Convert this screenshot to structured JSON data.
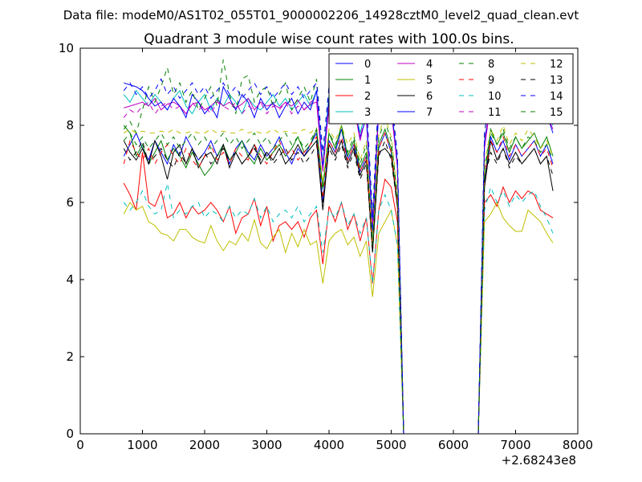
{
  "figure": {
    "suptitle": "Data file: modeM0/AS1T02_055T01_9000002206_14928cztM0_level2_quad_clean.evt"
  },
  "chart_data": {
    "type": "line",
    "title": "Quadrant 3 module wise count rates with 100.0s bins.",
    "xlabel": "",
    "ylabel": "",
    "xlim": [
      0,
      8000
    ],
    "ylim": [
      0,
      10
    ],
    "x_offset_label": "+2.68243e8",
    "x_ticks": [
      0,
      1000,
      2000,
      3000,
      4000,
      5000,
      6000,
      7000,
      8000
    ],
    "y_ticks": [
      0,
      2,
      4,
      6,
      8,
      10
    ],
    "grid": false,
    "legend_position": "top-right",
    "legend_columns": 4,
    "x": [
      700,
      800,
      900,
      1000,
      1100,
      1200,
      1300,
      1400,
      1500,
      1600,
      1700,
      1800,
      1900,
      2000,
      2100,
      2200,
      2300,
      2400,
      2500,
      2600,
      2700,
      2800,
      2900,
      3000,
      3100,
      3200,
      3300,
      3400,
      3500,
      3600,
      3700,
      3800,
      3900,
      4000,
      4100,
      4200,
      4300,
      4400,
      4500,
      4600,
      4700,
      4800,
      4900,
      5000,
      5100,
      5200,
      5300,
      5400,
      5500,
      5600,
      5700,
      5800,
      5900,
      6000,
      6100,
      6200,
      6300,
      6400,
      6500,
      6600,
      6700,
      6800,
      6900,
      7000,
      7100,
      7200,
      7300,
      7400,
      7500,
      7600
    ],
    "series": [
      {
        "name": "0",
        "color": "#0000ff",
        "dash": "solid",
        "values": [
          7.2,
          7.5,
          7.8,
          7.4,
          7.1,
          7.6,
          7.3,
          7.0,
          7.5,
          7.2,
          7.7,
          7.4,
          7.1,
          7.3,
          7.6,
          7.2,
          7.5,
          7.0,
          7.4,
          7.6,
          7.3,
          7.1,
          7.5,
          7.2,
          7.4,
          7.7,
          7.3,
          7.0,
          7.4,
          7.2,
          7.5,
          7.8,
          6.0,
          7.6,
          7.3,
          7.9,
          7.1,
          7.5,
          6.8,
          7.2,
          4.9,
          7.4,
          7.8,
          7.3,
          6.0,
          0,
          0,
          0,
          0,
          0,
          0,
          0,
          0,
          0,
          0,
          0,
          0,
          0,
          6.5,
          7.7,
          7.3,
          7.6,
          7.1,
          7.5,
          7.2,
          7.4,
          7.6,
          7.2,
          7.5,
          7.0
        ]
      },
      {
        "name": "1",
        "color": "#008000",
        "dash": "solid",
        "values": [
          8.0,
          7.8,
          7.2,
          7.5,
          7.0,
          7.3,
          7.6,
          7.1,
          7.4,
          7.2,
          6.9,
          7.3,
          7.0,
          6.7,
          6.9,
          7.2,
          7.5,
          7.1,
          7.3,
          7.6,
          7.2,
          7.0,
          7.4,
          7.1,
          7.3,
          7.5,
          7.2,
          7.4,
          7.7,
          7.3,
          7.5,
          7.9,
          6.4,
          7.8,
          7.4,
          8.0,
          7.2,
          7.6,
          6.9,
          7.3,
          4.8,
          7.5,
          7.9,
          7.4,
          6.0,
          0,
          0,
          0,
          0,
          0,
          0,
          0,
          0,
          0,
          0,
          0,
          0,
          0,
          6.6,
          7.9,
          7.5,
          7.8,
          7.3,
          7.7,
          7.4,
          7.6,
          7.8,
          7.4,
          7.7,
          7.2
        ]
      },
      {
        "name": "2",
        "color": "#ff0000",
        "dash": "solid",
        "values": [
          6.5,
          6.2,
          5.8,
          7.3,
          6.0,
          5.9,
          6.3,
          5.6,
          5.7,
          6.0,
          5.6,
          5.9,
          5.7,
          5.8,
          6.0,
          5.8,
          5.5,
          5.9,
          5.2,
          5.6,
          5.7,
          6.1,
          5.4,
          5.9,
          5.0,
          5.4,
          5.5,
          5.3,
          5.5,
          5.1,
          5.6,
          5.8,
          4.4,
          5.9,
          5.5,
          6.0,
          5.3,
          5.7,
          5.0,
          5.6,
          3.9,
          5.8,
          6.6,
          6.4,
          5.5,
          0,
          0,
          0,
          0,
          0,
          0,
          0,
          0,
          0,
          0,
          0,
          0,
          0,
          6.0,
          6.2,
          5.9,
          6.4,
          6.0,
          6.3,
          6.1,
          6.3,
          6.2,
          5.8,
          5.7,
          5.6
        ]
      },
      {
        "name": "3",
        "color": "#00bfbf",
        "dash": "solid",
        "values": [
          8.8,
          8.6,
          8.9,
          8.7,
          8.5,
          8.8,
          8.6,
          8.4,
          8.7,
          8.9,
          8.5,
          8.3,
          8.6,
          8.8,
          8.4,
          8.7,
          8.5,
          8.8,
          8.6,
          8.3,
          8.7,
          8.5,
          8.4,
          8.6,
          8.8,
          8.5,
          8.7,
          8.4,
          8.6,
          8.8,
          8.5,
          8.9,
          7.0,
          8.8,
          8.4,
          8.9,
          8.3,
          8.6,
          7.8,
          8.4,
          5.5,
          8.6,
          9.0,
          8.5,
          7.0,
          0,
          0,
          0,
          0,
          0,
          0,
          0,
          0,
          0,
          0,
          0,
          0,
          0,
          7.5,
          8.7,
          8.4,
          8.8,
          8.3,
          8.6,
          8.4,
          8.7,
          8.5,
          8.2,
          8.4,
          8.0
        ]
      },
      {
        "name": "4",
        "color": "#bf00bf",
        "dash": "solid",
        "values": [
          8.45,
          8.5,
          8.55,
          8.6,
          8.5,
          8.7,
          8.4,
          8.55,
          8.6,
          8.5,
          8.3,
          8.55,
          8.6,
          8.4,
          8.5,
          8.65,
          8.5,
          8.6,
          8.45,
          8.55,
          8.7,
          8.4,
          8.6,
          8.5,
          8.55,
          8.45,
          8.6,
          8.5,
          8.65,
          8.4,
          8.55,
          8.6,
          6.8,
          8.5,
          8.3,
          8.7,
          8.2,
          8.5,
          7.6,
          8.3,
          5.3,
          8.5,
          8.9,
          8.4,
          6.9,
          0,
          0,
          0,
          0,
          0,
          0,
          0,
          0,
          0,
          0,
          0,
          0,
          0,
          7.4,
          8.6,
          8.3,
          8.7,
          8.2,
          8.5,
          8.3,
          8.6,
          8.4,
          8.1,
          8.3,
          7.9
        ]
      },
      {
        "name": "5",
        "color": "#bfbf00",
        "dash": "solid",
        "values": [
          5.7,
          6.0,
          5.8,
          5.9,
          5.5,
          5.4,
          5.2,
          5.15,
          5.0,
          5.3,
          5.3,
          5.1,
          5.0,
          4.95,
          5.4,
          5.0,
          4.75,
          5.0,
          4.9,
          5.2,
          5.0,
          5.55,
          4.95,
          4.8,
          5.1,
          5.3,
          4.7,
          5.2,
          4.85,
          5.3,
          4.9,
          5.0,
          3.9,
          5.0,
          5.2,
          5.3,
          4.9,
          5.1,
          4.6,
          5.0,
          3.55,
          5.2,
          5.5,
          5.8,
          4.9,
          0,
          0,
          0,
          0,
          0,
          0,
          0,
          0,
          0,
          0,
          0,
          0,
          0,
          5.5,
          5.7,
          6.0,
          5.6,
          5.4,
          5.25,
          5.25,
          5.8,
          5.65,
          5.5,
          5.2,
          4.95
        ]
      },
      {
        "name": "6",
        "color": "#000000",
        "dash": "solid",
        "values": [
          7.6,
          7.3,
          7.1,
          7.4,
          7.0,
          7.6,
          7.2,
          6.6,
          7.3,
          7.5,
          7.0,
          7.4,
          6.9,
          7.2,
          7.3,
          7.0,
          7.5,
          6.9,
          7.3,
          7.0,
          7.2,
          7.5,
          7.0,
          7.3,
          7.1,
          7.4,
          7.0,
          7.2,
          7.5,
          7.2,
          7.4,
          7.6,
          5.8,
          7.5,
          7.2,
          7.6,
          7.0,
          7.4,
          6.7,
          7.1,
          4.7,
          7.3,
          7.4,
          7.2,
          5.9,
          0,
          0,
          0,
          0,
          0,
          0,
          0,
          0,
          0,
          0,
          0,
          0,
          0,
          6.4,
          7.6,
          7.1,
          7.4,
          7.0,
          7.3,
          7.0,
          7.2,
          7.4,
          7.0,
          7.2,
          6.3
        ]
      },
      {
        "name": "7",
        "color": "#0000ff",
        "dash": "solid",
        "values": [
          9.1,
          9.05,
          9.0,
          8.9,
          8.7,
          8.5,
          8.6,
          8.4,
          8.7,
          8.5,
          8.2,
          8.8,
          8.6,
          8.3,
          8.5,
          8.2,
          9.0,
          8.7,
          8.4,
          8.8,
          8.6,
          8.2,
          8.7,
          8.4,
          8.6,
          8.2,
          8.5,
          8.7,
          8.3,
          8.6,
          8.4,
          8.9,
          6.9,
          8.7,
          8.3,
          8.9,
          8.1,
          8.5,
          7.7,
          8.2,
          5.2,
          8.4,
          8.9,
          8.5,
          7.0,
          0,
          0,
          0,
          0,
          0,
          0,
          0,
          0,
          0,
          0,
          0,
          0,
          0,
          7.6,
          8.6,
          8.3,
          8.8,
          8.3,
          8.6,
          8.3,
          8.6,
          8.4,
          8.1,
          8.3,
          7.8
        ]
      },
      {
        "name": "8",
        "color": "#008000",
        "dash": "dashed",
        "values": [
          7.9,
          8.1,
          7.8,
          8.4,
          9.0,
          8.6,
          9.0,
          9.5,
          8.8,
          9.1,
          8.6,
          8.9,
          8.4,
          8.7,
          9.0,
          8.5,
          9.7,
          8.8,
          8.3,
          9.2,
          9.3,
          8.6,
          8.9,
          9.0,
          8.5,
          8.8,
          9.1,
          8.4,
          8.7,
          9.0,
          8.6,
          9.2,
          7.3,
          9.0,
          8.6,
          9.2,
          8.4,
          8.8,
          8.1,
          8.6,
          5.7,
          8.8,
          9.2,
          8.7,
          7.2,
          0,
          0,
          0,
          0,
          0,
          0,
          0,
          0,
          0,
          0,
          0,
          0,
          0,
          7.8,
          9.0,
          8.6,
          9.1,
          8.6,
          8.9,
          8.6,
          9.0,
          8.8,
          8.4,
          8.6,
          8.2
        ]
      },
      {
        "name": "9",
        "color": "#ff0000",
        "dash": "dashed",
        "values": [
          7.0,
          7.6,
          7.3,
          7.1,
          7.4,
          7.0,
          7.3,
          7.5,
          7.2,
          7.0,
          7.4,
          7.1,
          6.9,
          7.2,
          7.5,
          7.1,
          7.3,
          7.0,
          7.4,
          7.2,
          7.1,
          7.5,
          7.2,
          7.0,
          7.3,
          7.6,
          7.2,
          7.4,
          7.1,
          7.3,
          7.5,
          7.7,
          6.1,
          7.6,
          7.3,
          7.7,
          7.1,
          7.5,
          6.8,
          7.2,
          4.8,
          7.4,
          7.8,
          7.3,
          6.0,
          0,
          0,
          0,
          0,
          0,
          0,
          0,
          0,
          0,
          0,
          0,
          0,
          0,
          6.7,
          7.6,
          7.3,
          7.7,
          7.2,
          7.5,
          7.2,
          7.4,
          7.6,
          7.2,
          7.4,
          6.9
        ]
      },
      {
        "name": "10",
        "color": "#00bfbf",
        "dash": "dashed",
        "values": [
          6.0,
          5.8,
          6.0,
          6.3,
          5.9,
          5.7,
          5.8,
          6.5,
          5.6,
          5.8,
          5.7,
          5.9,
          6.0,
          5.6,
          5.8,
          5.7,
          5.5,
          5.9,
          5.6,
          5.8,
          5.7,
          6.1,
          5.6,
          5.9,
          5.5,
          5.7,
          5.8,
          5.6,
          5.9,
          5.5,
          5.7,
          5.9,
          4.7,
          5.8,
          5.6,
          6.0,
          5.4,
          5.7,
          5.2,
          5.6,
          3.9,
          5.8,
          6.2,
          5.8,
          4.9,
          0,
          0,
          0,
          0,
          0,
          0,
          0,
          0,
          0,
          0,
          0,
          0,
          0,
          5.8,
          6.4,
          6.0,
          6.3,
          5.9,
          6.2,
          6.0,
          6.2,
          6.3,
          5.9,
          5.6,
          5.2
        ]
      },
      {
        "name": "11",
        "color": "#bf00bf",
        "dash": "dashed",
        "values": [
          8.2,
          8.4,
          8.3,
          8.5,
          8.6,
          8.3,
          8.5,
          8.6,
          8.4,
          8.5,
          8.3,
          8.6,
          8.4,
          8.5,
          8.3,
          8.6,
          8.5,
          8.4,
          8.6,
          8.3,
          8.5,
          8.4,
          8.6,
          8.3,
          8.5,
          8.4,
          8.6,
          8.3,
          8.5,
          8.4,
          8.6,
          8.7,
          6.9,
          8.6,
          8.3,
          8.8,
          8.2,
          8.5,
          7.7,
          8.3,
          5.4,
          8.5,
          8.9,
          8.4,
          7.0,
          0,
          0,
          0,
          0,
          0,
          0,
          0,
          0,
          0,
          0,
          0,
          0,
          0,
          7.5,
          8.7,
          8.4,
          8.8,
          8.3,
          8.6,
          8.3,
          8.7,
          8.5,
          8.2,
          8.4,
          8.0
        ]
      },
      {
        "name": "12",
        "color": "#bfbf00",
        "dash": "dashed",
        "values": [
          7.8,
          7.9,
          7.8,
          7.85,
          7.8,
          7.8,
          7.85,
          7.8,
          7.9,
          7.8,
          7.8,
          7.85,
          7.8,
          7.8,
          7.9,
          7.8,
          7.85,
          7.8,
          7.8,
          7.9,
          7.8,
          7.85,
          7.8,
          7.8,
          7.9,
          7.8,
          7.85,
          7.8,
          7.8,
          7.9,
          7.8,
          7.95,
          6.5,
          7.9,
          7.6,
          8.0,
          7.5,
          7.8,
          7.1,
          7.6,
          5.0,
          7.8,
          8.2,
          7.7,
          6.4,
          0,
          0,
          0,
          0,
          0,
          0,
          0,
          0,
          0,
          0,
          0,
          0,
          0,
          7.0,
          7.9,
          7.6,
          8.0,
          7.5,
          7.8,
          7.6,
          7.9,
          7.7,
          7.4,
          7.6,
          7.2
        ]
      },
      {
        "name": "13",
        "color": "#000000",
        "dash": "dashed",
        "values": [
          7.4,
          7.1,
          7.3,
          7.6,
          7.0,
          7.2,
          7.4,
          7.1,
          6.9,
          7.3,
          7.0,
          7.4,
          7.1,
          7.3,
          7.0,
          7.2,
          7.4,
          7.1,
          7.3,
          7.0,
          7.2,
          7.4,
          7.1,
          7.3,
          7.0,
          7.2,
          7.4,
          7.1,
          7.3,
          7.0,
          7.2,
          7.5,
          6.0,
          7.4,
          7.1,
          7.5,
          6.9,
          7.3,
          6.6,
          7.0,
          4.7,
          7.2,
          7.6,
          7.1,
          5.9,
          0,
          0,
          0,
          0,
          0,
          0,
          0,
          0,
          0,
          0,
          0,
          0,
          0,
          6.6,
          7.3,
          7.0,
          7.4,
          6.9,
          7.2,
          7.0,
          7.2,
          7.4,
          7.0,
          7.2,
          6.7
        ]
      },
      {
        "name": "14",
        "color": "#0000ff",
        "dash": "dashed",
        "values": [
          8.9,
          9.1,
          8.8,
          9.0,
          8.7,
          8.9,
          9.2,
          8.8,
          9.0,
          8.7,
          8.9,
          9.1,
          8.8,
          9.0,
          8.7,
          8.9,
          9.1,
          8.8,
          9.0,
          8.7,
          8.9,
          9.1,
          8.8,
          9.0,
          8.7,
          8.9,
          9.1,
          8.8,
          9.0,
          8.7,
          8.9,
          9.1,
          7.3,
          9.0,
          8.7,
          9.3,
          8.6,
          8.9,
          8.1,
          8.7,
          5.6,
          8.9,
          9.2,
          8.8,
          7.2,
          0,
          0,
          0,
          0,
          0,
          0,
          0,
          0,
          0,
          0,
          0,
          0,
          0,
          7.8,
          9.0,
          8.7,
          9.1,
          8.6,
          8.9,
          8.6,
          9.0,
          8.8,
          8.4,
          8.6,
          8.2
        ]
      },
      {
        "name": "15",
        "color": "#008000",
        "dash": "dashed",
        "values": [
          7.6,
          7.8,
          7.5,
          7.7,
          7.4,
          7.6,
          7.8,
          7.5,
          7.7,
          7.4,
          7.6,
          7.8,
          7.5,
          7.7,
          7.4,
          7.6,
          7.8,
          7.5,
          7.7,
          7.4,
          7.6,
          7.8,
          7.5,
          7.7,
          7.4,
          7.6,
          7.8,
          7.5,
          7.7,
          7.4,
          7.6,
          7.9,
          6.3,
          7.8,
          7.5,
          7.9,
          7.3,
          7.7,
          7.0,
          7.5,
          4.9,
          7.7,
          8.1,
          7.6,
          6.2,
          0,
          0,
          0,
          0,
          0,
          0,
          0,
          0,
          0,
          0,
          0,
          0,
          0,
          6.9,
          7.8,
          7.5,
          7.9,
          7.4,
          7.7,
          7.4,
          7.7,
          7.6,
          7.3,
          7.5,
          7.1
        ]
      }
    ]
  }
}
